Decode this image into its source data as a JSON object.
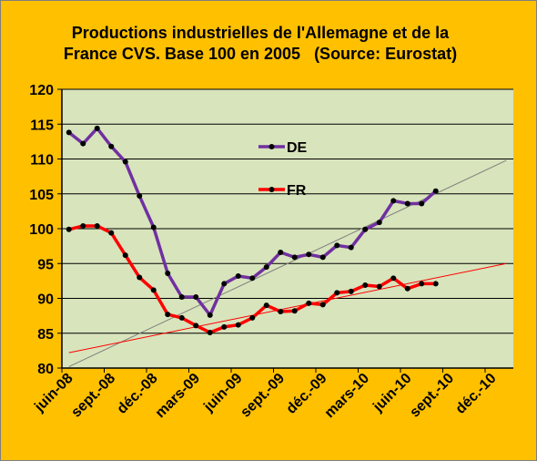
{
  "chart_data": {
    "type": "line",
    "title_line1": "Productions industrielles de l'Allemagne et de la",
    "title_line2": "France CVS. Base 100 en 2005   (Source: Eurostat)",
    "xlabel": "",
    "ylabel": "",
    "ylim": [
      80,
      120
    ],
    "yticks": [
      80,
      85,
      90,
      95,
      100,
      105,
      110,
      115,
      120
    ],
    "x_tick_labels": [
      "juin-08",
      "sept.-08",
      "déc.-08",
      "mars-09",
      "juin-09",
      "sept.-09",
      "déc.-09",
      "mars-10",
      "juin-10",
      "sept.-10",
      "déc.-10"
    ],
    "x_months": [
      "juin-08",
      "juil.-08",
      "août-08",
      "sept.-08",
      "oct.-08",
      "nov.-08",
      "déc.-08",
      "janv.-09",
      "févr.-09",
      "mars-09",
      "avr.-09",
      "mai-09",
      "juin-09",
      "juil.-09",
      "août-09",
      "sept.-09",
      "oct.-09",
      "nov.-09",
      "déc.-09",
      "janv.-10",
      "févr.-10",
      "mars-10",
      "avr.-10",
      "mai-10",
      "juin-10",
      "juil.-10",
      "août-10",
      "sept.-10",
      "oct.-10",
      "nov.-10",
      "déc.-10",
      "janv.-11"
    ],
    "grid": true,
    "legend_position": "top-center",
    "background_color": "#d8e4bc",
    "frame_color": "#ffc000",
    "series": [
      {
        "name": "DE",
        "color": "#7030a0",
        "values": [
          113.8,
          112.2,
          114.4,
          111.8,
          109.6,
          104.7,
          100.2,
          93.6,
          90.2,
          90.2,
          87.6,
          92.1,
          93.2,
          92.9,
          94.5,
          96.6,
          95.9,
          96.3,
          95.9,
          97.6,
          97.3,
          99.9,
          100.9,
          104.0,
          103.6,
          103.6,
          105.4
        ]
      },
      {
        "name": "FR",
        "color": "#ff0000",
        "values": [
          99.9,
          100.4,
          100.4,
          99.4,
          96.2,
          93.0,
          91.2,
          87.7,
          87.2,
          86.1,
          85.1,
          85.9,
          86.2,
          87.2,
          89.0,
          88.1,
          88.2,
          89.3,
          89.1,
          90.8,
          91.0,
          91.9,
          91.7,
          92.9,
          91.4,
          92.1,
          92.1
        ]
      }
    ],
    "trendlines": [
      {
        "of": "DE",
        "color": "#7f7f7f",
        "start": [
          0,
          80.2
        ],
        "end": [
          31,
          109.8
        ]
      },
      {
        "of": "FR",
        "color": "#ff0000",
        "start": [
          0,
          82.2
        ],
        "end": [
          31,
          95.0
        ]
      }
    ]
  }
}
